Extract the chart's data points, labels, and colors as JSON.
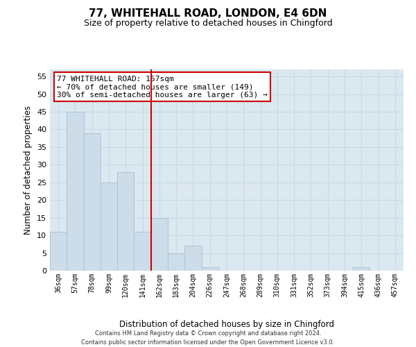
{
  "title": "77, WHITEHALL ROAD, LONDON, E4 6DN",
  "subtitle": "Size of property relative to detached houses in Chingford",
  "xlabel": "Distribution of detached houses by size in Chingford",
  "ylabel": "Number of detached properties",
  "bar_labels": [
    "36sqm",
    "57sqm",
    "78sqm",
    "99sqm",
    "120sqm",
    "141sqm",
    "162sqm",
    "183sqm",
    "204sqm",
    "226sqm",
    "247sqm",
    "268sqm",
    "289sqm",
    "310sqm",
    "331sqm",
    "352sqm",
    "373sqm",
    "394sqm",
    "415sqm",
    "436sqm",
    "457sqm"
  ],
  "bar_values": [
    11,
    45,
    39,
    25,
    28,
    11,
    15,
    5,
    7,
    1,
    0,
    0,
    0,
    0,
    0,
    0,
    0,
    0,
    1,
    0,
    0
  ],
  "bar_color": "#ccdce8",
  "bar_edge_color": "#aac4d8",
  "bar_width": 1.0,
  "vline_index": 5.5,
  "vline_color": "#cc0000",
  "annotation_line1": "77 WHITEHALL ROAD: 157sqm",
  "annotation_line2": "← 70% of detached houses are smaller (149)",
  "annotation_line3": "30% of semi-detached houses are larger (63) →",
  "ylim": [
    0,
    57
  ],
  "yticks": [
    0,
    5,
    10,
    15,
    20,
    25,
    30,
    35,
    40,
    45,
    50,
    55
  ],
  "grid_color": "#c8d8e8",
  "background_color": "#dce8f0",
  "footnote": "Contains HM Land Registry data © Crown copyright and database right 2024.\nContains public sector information licensed under the Open Government Licence v3.0.",
  "fig_bg_color": "#ffffff"
}
